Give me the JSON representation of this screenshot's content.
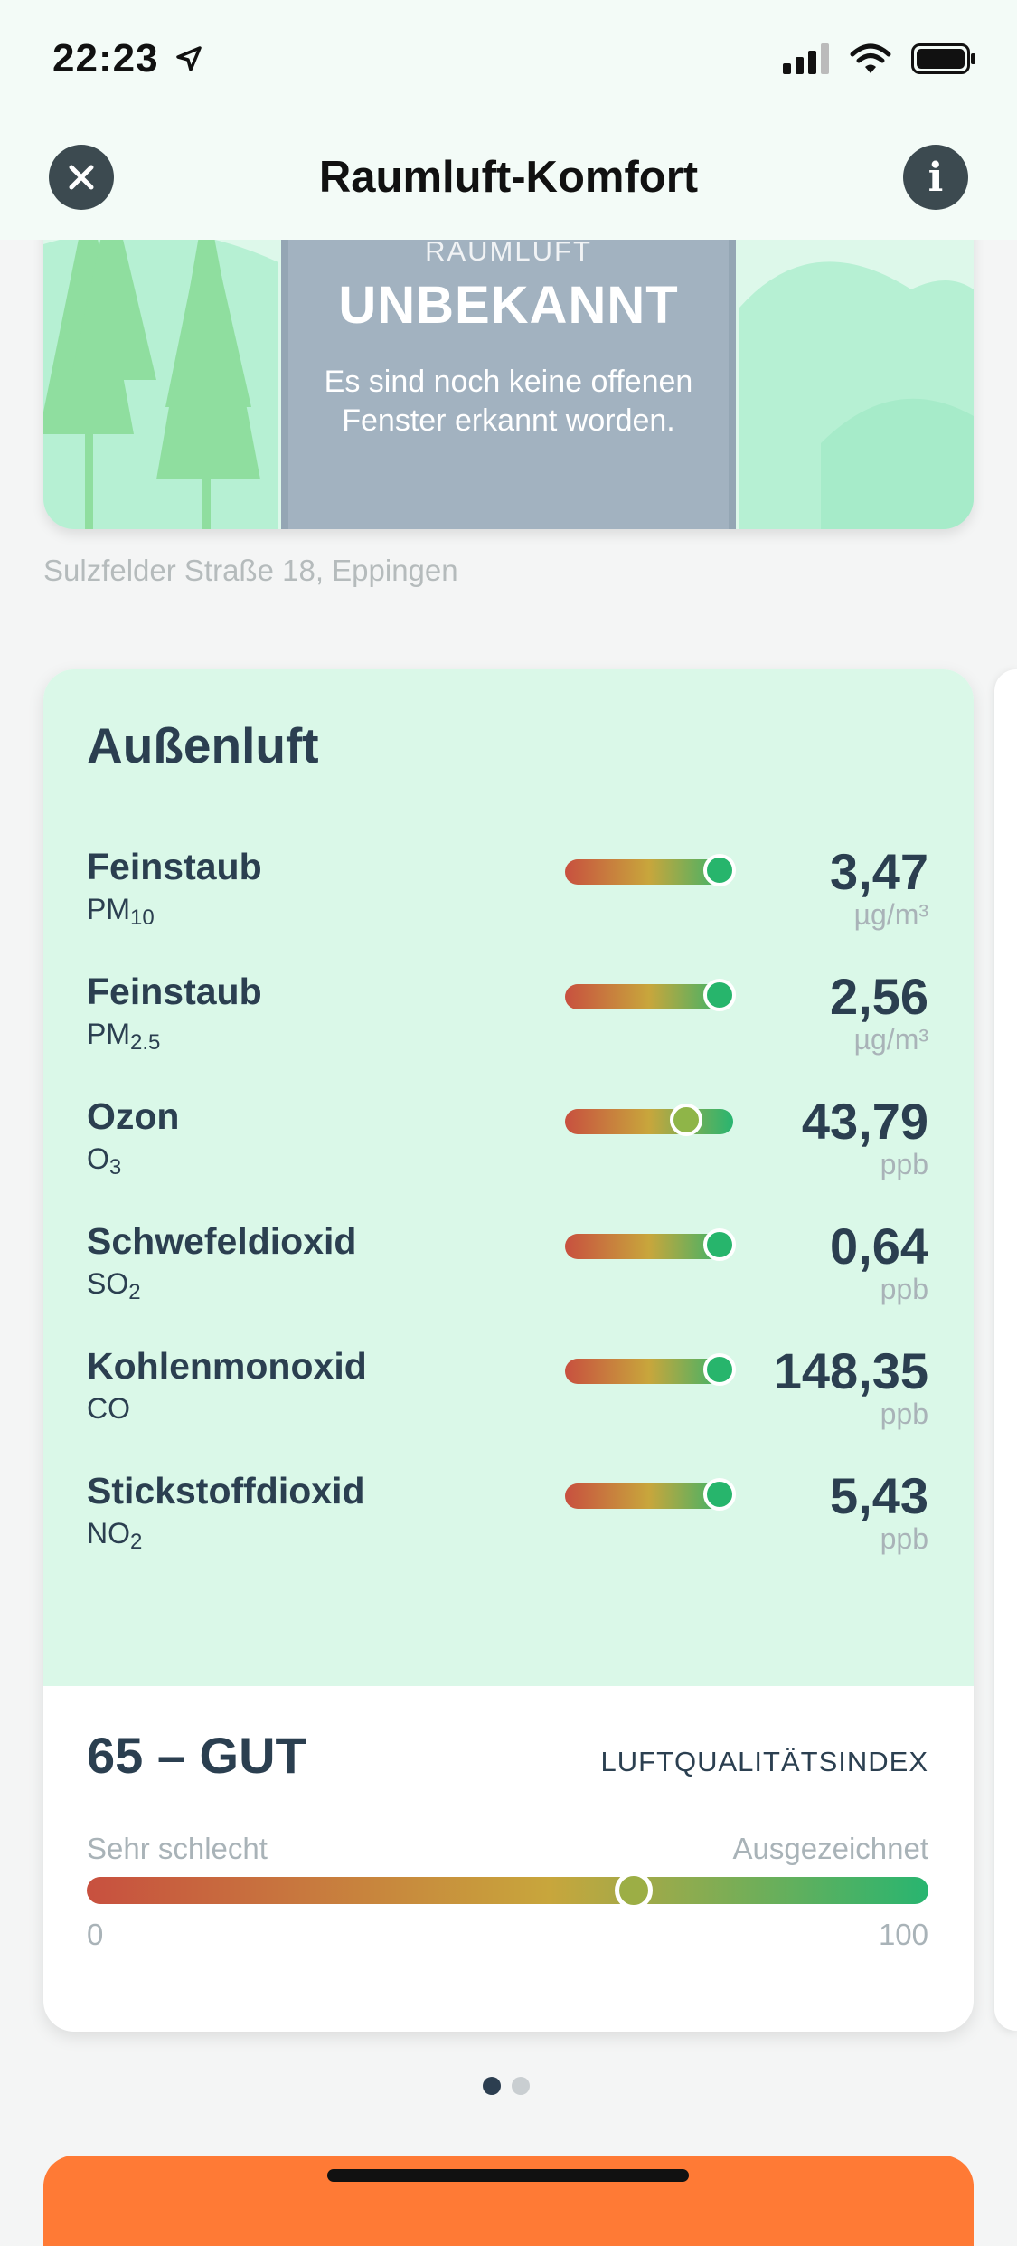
{
  "status_bar": {
    "time": "22:23"
  },
  "nav": {
    "title": "Raumluft-Komfort",
    "info_label": "i"
  },
  "hero": {
    "label": "RAUMLUFT",
    "status": "UNBEKANNT",
    "description": "Es sind noch keine offenen Fenster erkannt worden."
  },
  "address": "Sulzfelder Straße 18, Eppingen",
  "outdoor": {
    "title": "Außenluft",
    "measurements": [
      {
        "name": "Feinstaub",
        "formula": "PM",
        "formula_sub": "10",
        "value": "3,47",
        "unit": "µg/m³",
        "level": 0.92,
        "dot_color": "#27b56c"
      },
      {
        "name": "Feinstaub",
        "formula": "PM",
        "formula_sub": "2.5",
        "value": "2,56",
        "unit": "µg/m³",
        "level": 0.92,
        "dot_color": "#27b56c"
      },
      {
        "name": "Ozon",
        "formula": "O",
        "formula_sub": "3",
        "value": "43,79",
        "unit": "ppb",
        "level": 0.72,
        "dot_color": "#8fb548"
      },
      {
        "name": "Schwefeldioxid",
        "formula": "SO",
        "formula_sub": "2",
        "value": "0,64",
        "unit": "ppb",
        "level": 0.92,
        "dot_color": "#27b56c"
      },
      {
        "name": "Kohlenmonoxid",
        "formula": "CO",
        "formula_sub": "",
        "value": "148,35",
        "unit": "ppb",
        "level": 0.92,
        "dot_color": "#27b56c"
      },
      {
        "name": "Stickstoffdioxid",
        "formula": "NO",
        "formula_sub": "2",
        "value": "5,43",
        "unit": "ppb",
        "level": 0.92,
        "dot_color": "#27b56c"
      }
    ]
  },
  "aqi": {
    "score_text": "65 – GUT",
    "label": "LUFTQUALITÄTSINDEX",
    "worst_label": "Sehr schlecht",
    "best_label": "Ausgezeichnet",
    "min": "0",
    "max": "100",
    "value": 65
  },
  "pager": {
    "count": 2,
    "active_index": 0,
    "active_color": "#2c3e50",
    "inactive_color": "#c9ced1"
  },
  "colors": {
    "accent_orange": "#ff7a35",
    "card_green": "#daf8e8",
    "text_dark": "#2b3f50"
  }
}
